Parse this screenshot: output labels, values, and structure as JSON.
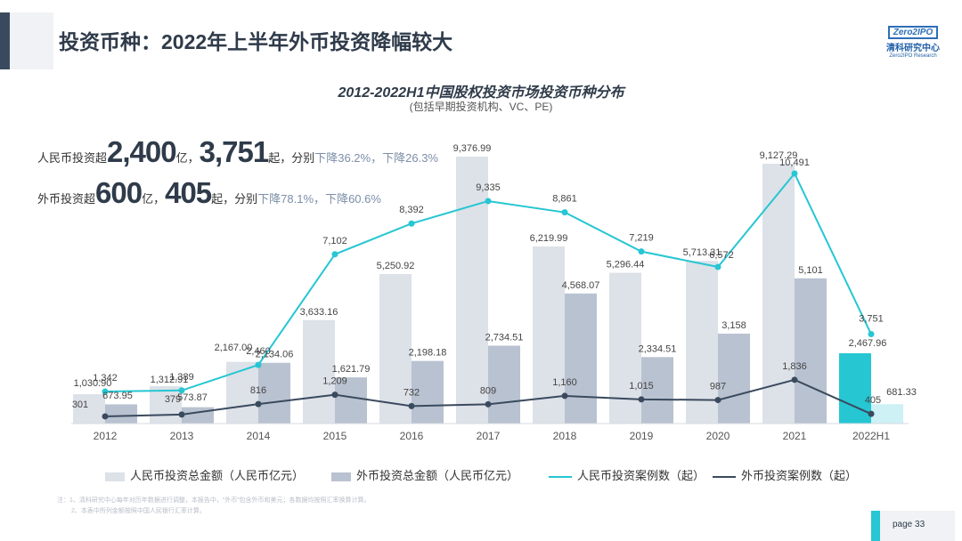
{
  "header": {
    "title": "投资币种：2022年上半年外币投资降幅较大"
  },
  "logo": {
    "box": "Zero2IPO",
    "cn": "清科研究中心",
    "en": "Zero2IPO Research"
  },
  "stats": {
    "rmb": {
      "prefix": "人民币投资超",
      "amount": "2,400",
      "unit1": "亿，",
      "count": "3,751",
      "unit2": "起，分别",
      "change1": "下降36.2%",
      "sep": "，",
      "change2": "下降26.3%"
    },
    "fx": {
      "prefix": "外币投资超",
      "amount": "600",
      "unit1": "亿，",
      "count": "405",
      "unit2": "起，分别",
      "change1": "下降78.1%",
      "sep": "，",
      "change2": "下降60.6%"
    }
  },
  "chart_data": {
    "type": "bar",
    "title": "2012-2022H1中国股权投资市场投资币种分布",
    "subtitle": "(包括早期投资机构、VC、PE)",
    "categories": [
      "2012",
      "2013",
      "2014",
      "2015",
      "2016",
      "2017",
      "2018",
      "2019",
      "2020",
      "2021",
      "2022H1"
    ],
    "series": [
      {
        "name": "人民币投资总金额（人民币亿元）",
        "kind": "bar",
        "color": "#dde1e8",
        "highlight_color": "#26c6d3",
        "values": [
          1030.9,
          1312.91,
          2167.0,
          3633.16,
          5250.92,
          9376.99,
          6219.99,
          5296.44,
          5713.31,
          9127.29,
          2467.96
        ],
        "labels": [
          "1,030.90",
          "1,312.91",
          "2,167.00",
          "3,633.16",
          "5,250.92",
          "9,376.99",
          "6,219.99",
          "5,296.44",
          "5,713.31",
          "9,127.29",
          "2,467.96"
        ]
      },
      {
        "name": "外币投资总金额（人民币亿元）",
        "kind": "bar",
        "color": "#b9c2d0",
        "highlight_color": "#cdf1f4",
        "values": [
          673.95,
          573.87,
          2134.06,
          1621.79,
          2198.18,
          2734.51,
          4568.07,
          2334.51,
          3158,
          5101,
          681.33
        ],
        "labels": [
          "673.95",
          "573.87",
          "2,134.06",
          "1,621.79",
          "2,198.18",
          "2,734.51",
          "4,568.07",
          "2,334.51",
          "3,158",
          "5,101",
          "681.33"
        ]
      },
      {
        "name": "人民币投资案例数（起）",
        "kind": "line",
        "color": "#26c6d3",
        "values": [
          1342,
          1389,
          2460,
          7102,
          8392,
          9335,
          8861,
          7219,
          6572,
          10491,
          3751
        ],
        "labels": [
          "1,342",
          "1,389",
          "2,460",
          "7,102",
          "8,392",
          "9,335",
          "8,861",
          "7,219",
          "6,572",
          "10,491",
          "3,751"
        ]
      },
      {
        "name": "外币投资案例数（起）",
        "kind": "line",
        "color": "#3a4a5e",
        "values": [
          301,
          379,
          816,
          1209,
          732,
          809,
          1160,
          1015,
          987,
          1836,
          405
        ],
        "labels": [
          "301",
          "379",
          "816",
          "1,209",
          "732",
          "809",
          "1,160",
          "1,015",
          "987",
          "1,836",
          "405"
        ]
      }
    ]
  },
  "legend": {
    "items": [
      "人民币投资总金额（人民币亿元）",
      "外币投资总金额（人民币亿元）",
      "人民币投资案例数（起）",
      "外币投资案例数（起）"
    ]
  },
  "notes": {
    "line1": "注：1、清科研究中心每年对历年数据进行调整，本报告中，“外币”包含外币和美元；各数据均按照汇率换算计算。",
    "line2": "2、本表中所列金额按照中国人民银行汇率计算。"
  },
  "footer": {
    "page": "page  33"
  }
}
